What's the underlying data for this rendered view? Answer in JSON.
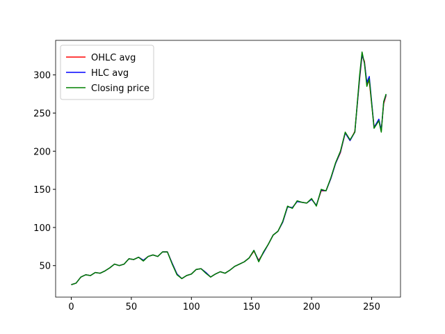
{
  "chart_data": {
    "type": "line",
    "x": [
      0,
      4,
      8,
      12,
      16,
      20,
      24,
      28,
      32,
      36,
      40,
      44,
      48,
      52,
      56,
      60,
      64,
      68,
      72,
      76,
      80,
      84,
      88,
      92,
      96,
      100,
      104,
      108,
      112,
      116,
      120,
      124,
      128,
      132,
      136,
      140,
      144,
      148,
      152,
      156,
      160,
      164,
      168,
      172,
      176,
      180,
      184,
      188,
      192,
      196,
      200,
      204,
      208,
      212,
      216,
      220,
      224,
      228,
      232,
      236,
      240,
      242,
      244,
      246,
      248,
      252,
      256,
      258,
      260,
      262
    ],
    "series": [
      {
        "name": "OHLC avg",
        "color": "#ff0000",
        "values": [
          25,
          27,
          35,
          38,
          37,
          41,
          40,
          43,
          47,
          52,
          50,
          52,
          59,
          58,
          61,
          57,
          62,
          64,
          62,
          68,
          68,
          53,
          39,
          33,
          37,
          39,
          45,
          46,
          41,
          35,
          39,
          42,
          40,
          44,
          49,
          52,
          55,
          60,
          69,
          57,
          67,
          78,
          90,
          95,
          107,
          127,
          126,
          134,
          133,
          132,
          137,
          129,
          148,
          148,
          164,
          184,
          198,
          224,
          214,
          226,
          295,
          325,
          318,
          288,
          292,
          232,
          240,
          228,
          262,
          273
        ]
      },
      {
        "name": "HLC avg",
        "color": "#0000ff",
        "values": [
          25,
          27,
          35,
          38,
          37,
          41,
          40,
          43,
          47,
          52,
          50,
          52,
          59,
          58,
          61,
          57,
          62,
          64,
          62,
          68,
          68,
          53,
          39,
          33,
          37,
          39,
          45,
          46,
          41,
          35,
          39,
          42,
          40,
          44,
          49,
          52,
          55,
          60,
          70,
          56,
          67,
          78,
          90,
          95,
          107,
          127,
          126,
          134,
          133,
          132,
          137,
          129,
          149,
          148,
          164,
          184,
          199,
          224,
          214,
          225,
          297,
          327,
          316,
          290,
          298,
          231,
          242,
          227,
          264,
          274
        ]
      },
      {
        "name": "Closing price",
        "color": "#008000",
        "values": [
          25,
          27,
          35,
          38,
          37,
          41,
          40,
          43,
          47,
          52,
          50,
          52,
          59,
          58,
          61,
          56,
          62,
          64,
          62,
          68,
          68,
          52,
          38,
          33,
          37,
          39,
          45,
          46,
          40,
          35,
          39,
          42,
          40,
          44,
          49,
          52,
          55,
          60,
          70,
          55,
          68,
          78,
          90,
          95,
          108,
          128,
          125,
          135,
          133,
          132,
          138,
          128,
          150,
          148,
          165,
          185,
          200,
          225,
          215,
          225,
          300,
          330,
          315,
          285,
          295,
          230,
          240,
          225,
          265,
          275
        ]
      }
    ],
    "xlim": [
      -13,
      274
    ],
    "ylim": [
      8.7,
      345.3
    ],
    "xticks": [
      0,
      50,
      100,
      150,
      200,
      250
    ],
    "yticks": [
      50,
      100,
      150,
      200,
      250,
      300
    ],
    "legend": "upper left"
  }
}
